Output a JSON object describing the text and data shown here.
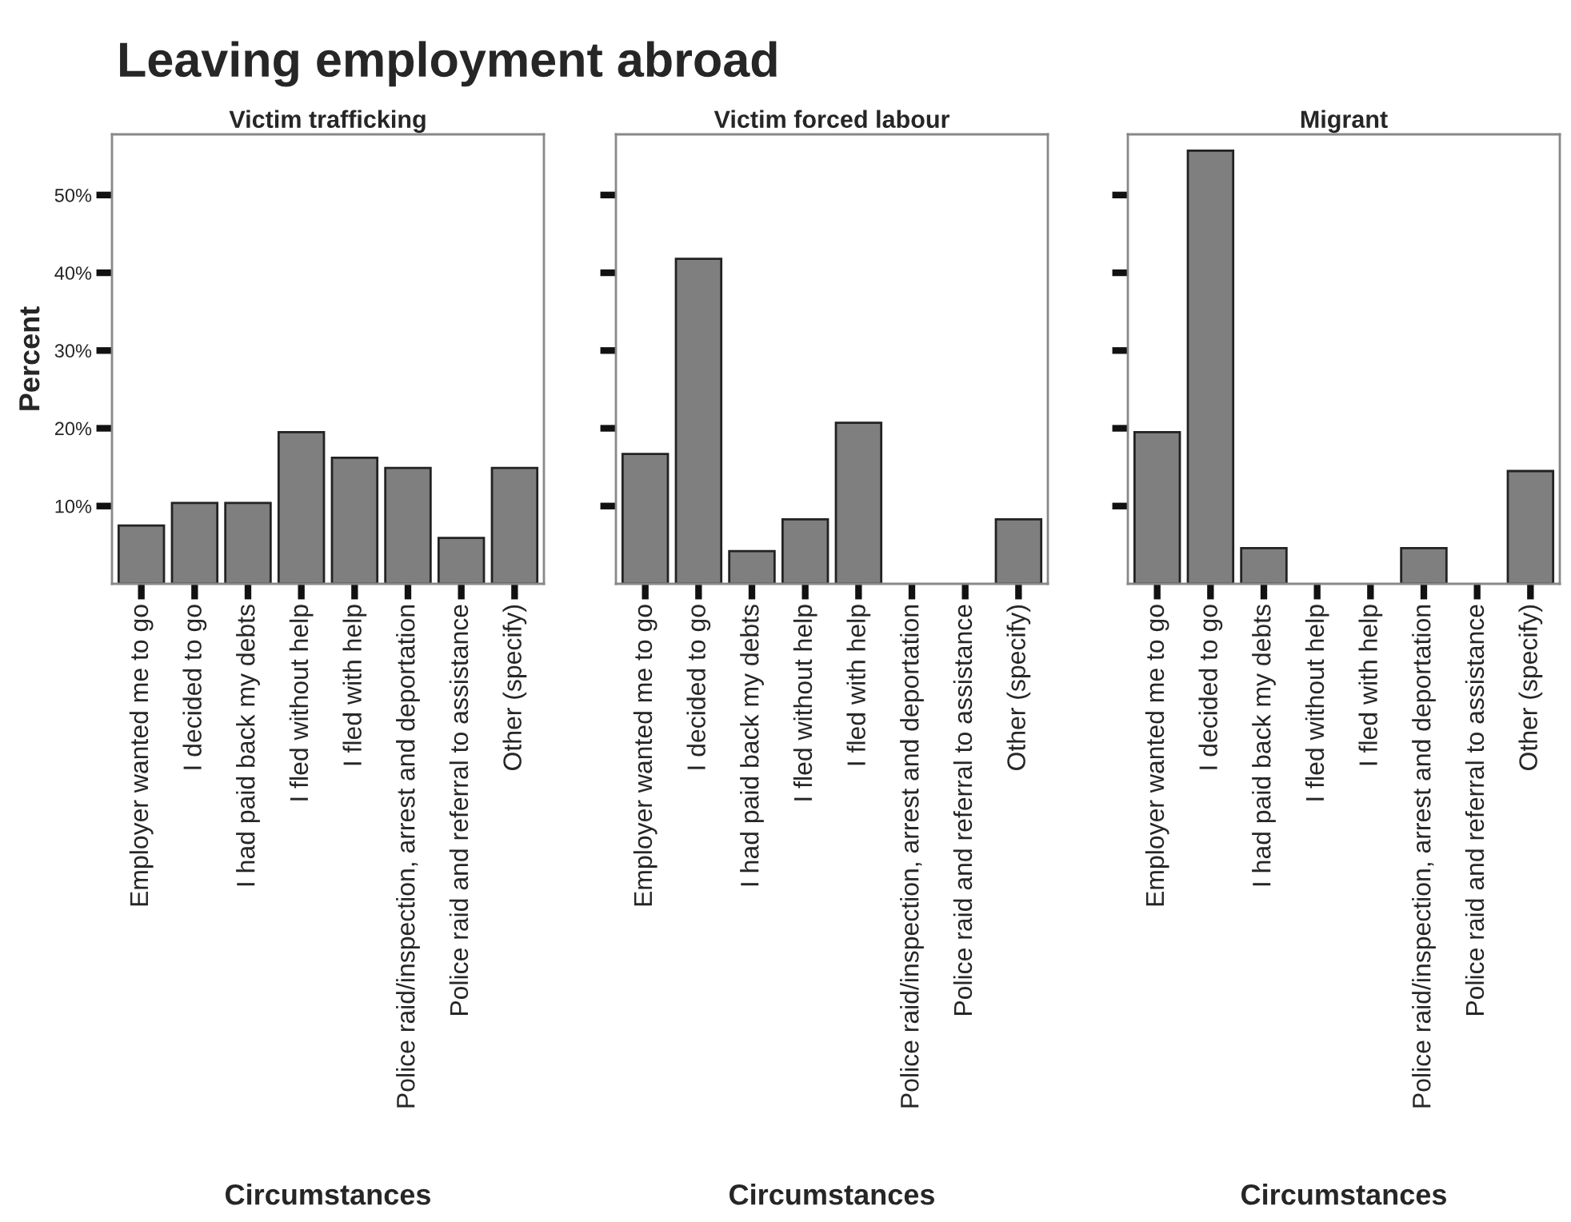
{
  "chart_data": [
    {
      "type": "bar",
      "title": "Victim trafficking",
      "xlabel": "Circumstances",
      "ylabel": "Percent",
      "annotations": [
        "Leaving employment abroad"
      ],
      "categories": [
        "Employer wanted me to go",
        "I decided to go",
        "I had paid back my debts",
        "I fled without help",
        "I fled with help",
        "Police raid/inspection, arrest and deportation",
        "Police raid and referral to assistance",
        "Other (specify)"
      ],
      "values": [
        7.5,
        10.4,
        10.4,
        19.5,
        16.2,
        14.9,
        5.9,
        14.9
      ],
      "color": "#7f7f7f",
      "ylim": [
        0,
        57.8
      ],
      "yticks": [
        {
          "value": 10,
          "label": "10%"
        },
        {
          "value": 20,
          "label": "20%"
        },
        {
          "value": 30,
          "label": "30%"
        },
        {
          "value": 40,
          "label": "40%"
        },
        {
          "value": 50,
          "label": "50%"
        }
      ],
      "grid": false
    },
    {
      "type": "bar",
      "title": "Victim forced labour",
      "xlabel": "Circumstances",
      "categories": [
        "Employer wanted me to go",
        "I decided to go",
        "I had paid back my debts",
        "I fled without help",
        "I fled with help",
        "Police raid/inspection, arrest and deportation",
        "Police raid and referral to assistance",
        "Other (specify)"
      ],
      "values": [
        16.7,
        41.8,
        4.2,
        8.3,
        20.7,
        0,
        0,
        8.3
      ],
      "color": "#7f7f7f",
      "ylim": [
        0,
        57.8
      ],
      "yticks": [
        {
          "value": 10,
          "label": null
        },
        {
          "value": 20,
          "label": null
        },
        {
          "value": 30,
          "label": null
        },
        {
          "value": 40,
          "label": null
        },
        {
          "value": 50,
          "label": null
        }
      ],
      "tick_labels": "x",
      "grid": false
    },
    {
      "type": "bar",
      "title": "Migrant",
      "xlabel": "Circumstances",
      "categories": [
        "Employer wanted me to go",
        "I decided to go",
        "I had paid back my debts",
        "I fled without help",
        "I fled with help",
        "Police raid/inspection, arrest and deportation",
        "Police raid and referral to assistance",
        "Other (specify)"
      ],
      "values": [
        19.5,
        55.7,
        4.6,
        0,
        0,
        4.6,
        0,
        14.5
      ],
      "color": "#7f7f7f",
      "ylim": [
        0,
        57.8
      ],
      "yticks": [
        {
          "value": 10,
          "label": null
        },
        {
          "value": 20,
          "label": null
        },
        {
          "value": 30,
          "label": null
        },
        {
          "value": 40,
          "label": null
        },
        {
          "value": 50,
          "label": null
        }
      ],
      "tick_labels": "x",
      "grid": false
    }
  ]
}
